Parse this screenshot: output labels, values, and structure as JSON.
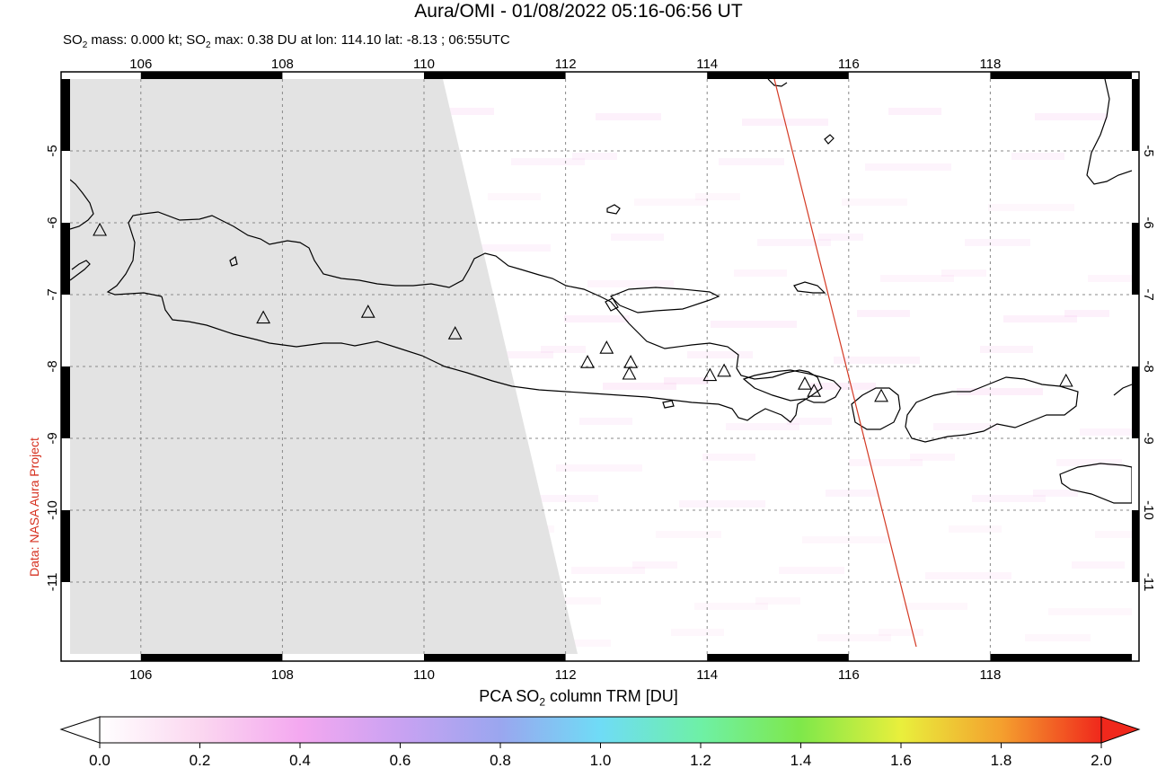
{
  "header": {
    "title": "Aura/OMI - 01/08/2022 05:16-06:56 UT",
    "subtitle_mass_prefix": "SO",
    "subtitle_mass_sub": "2",
    "subtitle_mass_text": " mass: 0.000 kt; SO",
    "subtitle_max_sub": "2",
    "subtitle_max_text": " max: 0.38 DU at lon: 114.10 lat: -8.13 ; 06:55UTC"
  },
  "credit": "Data: NASA Aura Project",
  "map": {
    "lon_ticks": [
      "106",
      "108",
      "110",
      "112",
      "114",
      "116",
      "118"
    ],
    "lat_ticks": [
      "-5",
      "-6",
      "-7",
      "-8",
      "-9",
      "-10",
      "-11"
    ],
    "lon_range": [
      105,
      120
    ],
    "lat_range": [
      -12,
      -4
    ],
    "no_data_color": "#e3e3e3",
    "track_color": "#d43b25",
    "volcanoes": [
      [
        105.42,
        -6.1
      ],
      [
        107.73,
        -7.32
      ],
      [
        109.21,
        -7.24
      ],
      [
        110.44,
        -7.54
      ],
      [
        112.31,
        -7.94
      ],
      [
        112.58,
        -7.74
      ],
      [
        112.92,
        -7.94
      ],
      [
        112.9,
        -8.1
      ],
      [
        114.04,
        -8.12
      ],
      [
        114.24,
        -8.06
      ],
      [
        115.38,
        -8.24
      ],
      [
        115.51,
        -8.34
      ],
      [
        116.46,
        -8.41
      ],
      [
        119.07,
        -8.2
      ]
    ]
  },
  "colorbar": {
    "label_prefix": "PCA SO",
    "label_sub": "2",
    "label_suffix": " column TRM [DU]",
    "ticks": [
      "0.0",
      "0.2",
      "0.4",
      "0.6",
      "0.8",
      "1.0",
      "1.2",
      "1.4",
      "1.6",
      "1.8",
      "2.0"
    ]
  }
}
